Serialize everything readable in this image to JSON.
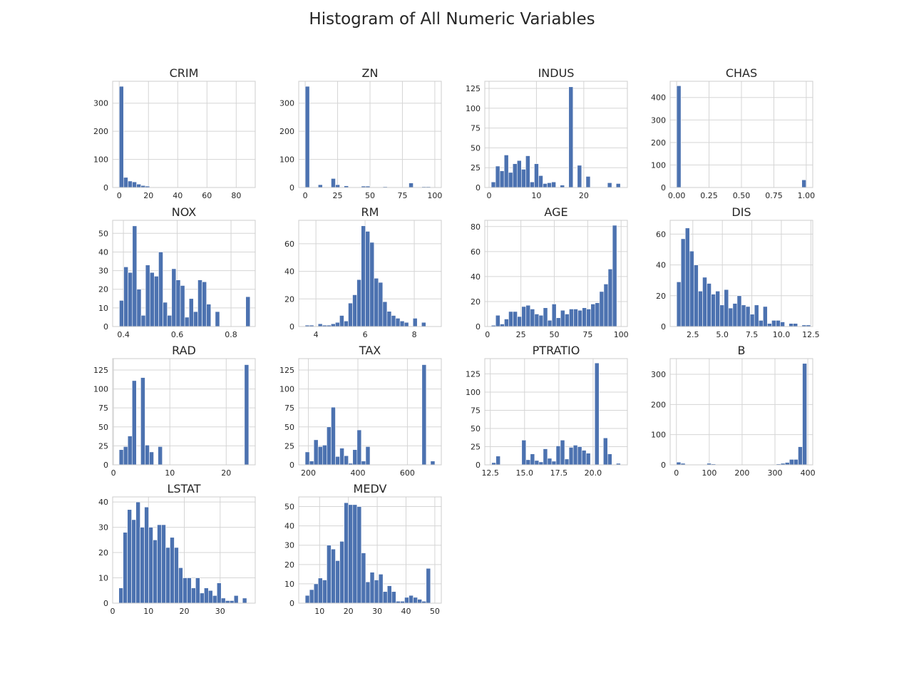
{
  "figure": {
    "title": "Histogram of All Numeric Variables",
    "bar_color": "#4c72b0",
    "grid_color": "#d5d5d5",
    "axes_edge_color": "#cccccc",
    "background": "#ffffff"
  },
  "chart_data": [
    {
      "type": "bar",
      "title": "CRIM",
      "xlim": [
        -4.5,
        93
      ],
      "ylim": [
        0,
        378
      ],
      "xticks": [
        0,
        20,
        40,
        60,
        80
      ],
      "xtick_labels": [
        "0",
        "20",
        "40",
        "60",
        "80"
      ],
      "yticks": [
        0,
        100,
        200,
        300
      ],
      "ytick_labels": [
        "0",
        "100",
        "200",
        "300"
      ],
      "bin_start": 0.0,
      "bin_width": 2.97,
      "values": [
        360,
        36,
        23,
        20,
        12,
        7,
        5,
        0,
        2,
        0,
        2,
        1,
        0,
        0,
        1,
        0,
        0,
        0,
        0,
        0,
        0,
        0,
        0,
        0,
        0,
        0,
        0,
        0,
        0,
        1
      ]
    },
    {
      "type": "bar",
      "title": "ZN",
      "xlim": [
        -5,
        105
      ],
      "ylim": [
        0,
        378
      ],
      "xticks": [
        0,
        25,
        50,
        75,
        100
      ],
      "xtick_labels": [
        "0",
        "25",
        "50",
        "75",
        "100"
      ],
      "yticks": [
        0,
        100,
        200,
        300
      ],
      "ytick_labels": [
        "0",
        "100",
        "200",
        "300"
      ],
      "bin_start": 0.0,
      "bin_width": 3.333,
      "values": [
        360,
        0,
        0,
        10,
        0,
        0,
        32,
        10,
        0,
        6,
        0,
        0,
        0,
        5,
        5,
        0,
        0,
        0,
        3,
        0,
        0,
        0,
        0,
        0,
        16,
        0,
        0,
        3,
        3,
        0
      ]
    },
    {
      "type": "bar",
      "title": "INDUS",
      "xlim": [
        -0.9,
        29.2
      ],
      "ylim": [
        0,
        134
      ],
      "xticks": [
        0,
        10,
        20
      ],
      "xtick_labels": [
        "0",
        "10",
        "20"
      ],
      "yticks": [
        0,
        25,
        50,
        75,
        100,
        125
      ],
      "ytick_labels": [
        "0",
        "25",
        "50",
        "75",
        "100",
        "125"
      ],
      "bin_start": 0.46,
      "bin_width": 0.909,
      "values": [
        7,
        27,
        21,
        41,
        19,
        30,
        34,
        23,
        40,
        7,
        30,
        15,
        5,
        6,
        7,
        0,
        3,
        0,
        127,
        0,
        28,
        0,
        14,
        0,
        0,
        0,
        0,
        6,
        0,
        5
      ]
    },
    {
      "type": "bar",
      "title": "CHAS",
      "xlim": [
        -0.05,
        1.05
      ],
      "ylim": [
        0,
        472
      ],
      "xticks": [
        0,
        0.25,
        0.5,
        0.75,
        1.0
      ],
      "xtick_labels": [
        "0.00",
        "0.25",
        "0.50",
        "0.75",
        "1.00"
      ],
      "yticks": [
        0,
        100,
        200,
        300,
        400
      ],
      "ytick_labels": [
        "0",
        "100",
        "200",
        "300",
        "400"
      ],
      "bin_start": 0.0,
      "bin_width": 0.0333,
      "values": [
        452,
        0,
        0,
        0,
        0,
        0,
        0,
        0,
        0,
        0,
        0,
        0,
        0,
        0,
        0,
        0,
        0,
        0,
        0,
        0,
        0,
        0,
        0,
        0,
        0,
        0,
        0,
        0,
        0,
        34
      ]
    },
    {
      "type": "bar",
      "title": "NOX",
      "xlim": [
        0.36,
        0.89
      ],
      "ylim": [
        0,
        57
      ],
      "xticks": [
        0.4,
        0.6,
        0.8
      ],
      "xtick_labels": [
        "0.4",
        "0.6",
        "0.8"
      ],
      "yticks": [
        0,
        10,
        20,
        30,
        40,
        50
      ],
      "ytick_labels": [
        "0",
        "10",
        "20",
        "30",
        "40",
        "50"
      ],
      "bin_start": 0.385,
      "bin_width": 0.0162,
      "values": [
        14,
        32,
        29,
        54,
        20,
        6,
        33,
        29,
        27,
        40,
        13,
        6,
        31,
        25,
        22,
        5,
        15,
        8,
        25,
        24,
        12,
        0,
        8,
        0,
        0,
        0,
        0,
        0,
        0,
        16
      ]
    },
    {
      "type": "bar",
      "title": "RM",
      "xlim": [
        3.3,
        9.1
      ],
      "ylim": [
        0,
        77
      ],
      "xticks": [
        4,
        6,
        8
      ],
      "xtick_labels": [
        "4",
        "6",
        "8"
      ],
      "yticks": [
        0,
        20,
        40,
        60
      ],
      "ytick_labels": [
        "0",
        "20",
        "40",
        "60"
      ],
      "bin_start": 3.561,
      "bin_width": 0.1754,
      "values": [
        1,
        1,
        0,
        2,
        1,
        1,
        2,
        3,
        8,
        4,
        17,
        23,
        34,
        73,
        69,
        61,
        35,
        32,
        18,
        11,
        8,
        6,
        4,
        3,
        0,
        6,
        0,
        3
      ]
    },
    {
      "type": "bar",
      "title": "AGE",
      "xlim": [
        -2,
        104.7
      ],
      "ylim": [
        0,
        85
      ],
      "xticks": [
        0,
        25,
        50,
        75,
        100
      ],
      "xtick_labels": [
        "0",
        "25",
        "50",
        "75",
        "100"
      ],
      "yticks": [
        0,
        20,
        40,
        60,
        80
      ],
      "ytick_labels": [
        "0",
        "20",
        "40",
        "60",
        "80"
      ],
      "bin_start": 2.9,
      "bin_width": 3.237,
      "values": [
        1,
        9,
        2,
        6,
        12,
        12,
        8,
        16,
        17,
        14,
        10,
        9,
        15,
        5,
        18,
        7,
        13,
        10,
        14,
        14,
        13,
        15,
        14,
        18,
        19,
        28,
        34,
        46,
        81
      ]
    },
    {
      "type": "bar",
      "title": "DIS",
      "xlim": [
        0.58,
        12.66
      ],
      "ylim": [
        0,
        69
      ],
      "xticks": [
        2.5,
        5.0,
        7.5,
        10.0,
        12.5
      ],
      "xtick_labels": [
        "2.5",
        "5.0",
        "7.5",
        "10.0",
        "12.5"
      ],
      "yticks": [
        0,
        20,
        40,
        60
      ],
      "ytick_labels": [
        "0",
        "20",
        "40",
        "60"
      ],
      "bin_start": 1.13,
      "bin_width": 0.366,
      "values": [
        29,
        57,
        64,
        49,
        40,
        23,
        32,
        28,
        21,
        23,
        14,
        24,
        12,
        15,
        20,
        14,
        13,
        8,
        14,
        4,
        13,
        2,
        4,
        4,
        3,
        0,
        2,
        2,
        0,
        1,
        1
      ]
    },
    {
      "type": "bar",
      "title": "RAD",
      "xlim": [
        -0.15,
        25.15
      ],
      "ylim": [
        0,
        140
      ],
      "xticks": [
        0,
        10,
        20
      ],
      "xtick_labels": [
        "0",
        "10",
        "20"
      ],
      "yticks": [
        0,
        25,
        50,
        75,
        100,
        125
      ],
      "ytick_labels": [
        "0",
        "25",
        "50",
        "75",
        "100",
        "125"
      ],
      "bin_start": 1.0,
      "bin_width": 0.7667,
      "values": [
        20,
        24,
        38,
        111,
        0,
        115,
        26,
        17,
        0,
        24,
        0,
        0,
        0,
        0,
        0,
        0,
        0,
        0,
        0,
        0,
        0,
        0,
        0,
        0,
        0,
        0,
        0,
        0,
        0,
        132
      ]
    },
    {
      "type": "bar",
      "title": "TAX",
      "xlim": [
        161,
        737
      ],
      "ylim": [
        0,
        140
      ],
      "xticks": [
        200,
        400,
        600
      ],
      "xtick_labels": [
        "200",
        "400",
        "600"
      ],
      "yticks": [
        0,
        25,
        50,
        75,
        100,
        125
      ],
      "ytick_labels": [
        "0",
        "25",
        "50",
        "75",
        "100",
        "125"
      ],
      "bin_start": 187,
      "bin_width": 17.47,
      "values": [
        17,
        5,
        33,
        24,
        26,
        50,
        76,
        11,
        22,
        12,
        2,
        20,
        46,
        5,
        24,
        0,
        0,
        0,
        0,
        0,
        0,
        0,
        0,
        0,
        0,
        0,
        0,
        132,
        0,
        5
      ]
    },
    {
      "type": "bar",
      "title": "PTRATIO",
      "xlim": [
        12.1,
        22.5
      ],
      "ylim": [
        0,
        146
      ],
      "xticks": [
        12.5,
        15.0,
        17.5,
        20.0
      ],
      "xtick_labels": [
        "12.5",
        "15.0",
        "17.5",
        "20.0"
      ],
      "yticks": [
        0,
        25,
        50,
        75,
        100,
        125
      ],
      "ytick_labels": [
        "0",
        "25",
        "50",
        "75",
        "100",
        "125"
      ],
      "bin_start": 12.6,
      "bin_width": 0.3133,
      "values": [
        3,
        12,
        0,
        0,
        0,
        0,
        0,
        34,
        7,
        15,
        6,
        4,
        22,
        9,
        5,
        26,
        34,
        8,
        24,
        27,
        25,
        20,
        16,
        0,
        140,
        0,
        37,
        15,
        0,
        2
      ]
    },
    {
      "type": "bar",
      "title": "B",
      "xlim": [
        -19,
        415
      ],
      "ylim": [
        0,
        352
      ],
      "xticks": [
        0,
        100,
        200,
        300,
        400
      ],
      "xtick_labels": [
        "0",
        "100",
        "200",
        "300",
        "400"
      ],
      "yticks": [
        0,
        100,
        200,
        300
      ],
      "ytick_labels": [
        "0",
        "100",
        "200",
        "300"
      ],
      "bin_start": 0.32,
      "bin_width": 13.218,
      "values": [
        9,
        5,
        0,
        0,
        0,
        0,
        0,
        5,
        3,
        0,
        0,
        0,
        0,
        0,
        0,
        0,
        0,
        0,
        0,
        0,
        0,
        0,
        2,
        3,
        5,
        8,
        18,
        18,
        60,
        336
      ]
    },
    {
      "type": "bar",
      "title": "LSTAT",
      "xlim": [
        0,
        39.8
      ],
      "ylim": [
        0,
        42
      ],
      "xticks": [
        0,
        10,
        20,
        30
      ],
      "xtick_labels": [
        "0",
        "10",
        "20",
        "30"
      ],
      "yticks": [
        0,
        10,
        20,
        30,
        40
      ],
      "ytick_labels": [
        "0",
        "10",
        "20",
        "30",
        "40"
      ],
      "bin_start": 1.73,
      "bin_width": 1.1903,
      "values": [
        6,
        28,
        37,
        33,
        40,
        30,
        38,
        30,
        25,
        31,
        31,
        22,
        26,
        22,
        14,
        10,
        10,
        6,
        10,
        4,
        6,
        5,
        3,
        8,
        2,
        1,
        1,
        3,
        0,
        2
      ]
    },
    {
      "type": "bar",
      "title": "MEDV",
      "xlim": [
        2.75,
        52.25
      ],
      "ylim": [
        0,
        55
      ],
      "xticks": [
        10,
        20,
        30,
        40,
        50
      ],
      "xtick_labels": [
        "10",
        "20",
        "30",
        "40",
        "50"
      ],
      "yticks": [
        0,
        10,
        20,
        30,
        40,
        50
      ],
      "ytick_labels": [
        "0",
        "10",
        "20",
        "30",
        "40",
        "50"
      ],
      "bin_start": 5.0,
      "bin_width": 1.5,
      "values": [
        4,
        7,
        10,
        13,
        12,
        30,
        28,
        22,
        32,
        52,
        51,
        51,
        50,
        26,
        11,
        16,
        12,
        15,
        6,
        9,
        6,
        1,
        1,
        3,
        4,
        3,
        2,
        1,
        18
      ]
    }
  ]
}
